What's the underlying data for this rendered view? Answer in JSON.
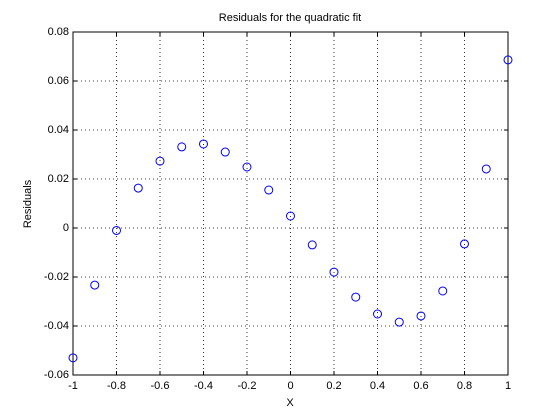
{
  "chart_data": {
    "type": "scatter",
    "title": "Residuals for the quadratic fit",
    "x_label": "X",
    "y_label": "Residuals",
    "x": [
      -1,
      -0.9,
      -0.8,
      -0.7,
      -0.6,
      -0.5,
      -0.4,
      -0.3,
      -0.2,
      -0.1,
      0,
      0.1,
      0.2,
      0.3,
      0.4,
      0.5,
      0.6,
      0.7,
      0.8,
      0.9,
      1
    ],
    "values": [
      -0.053,
      -0.0233,
      -0.001,
      0.0163,
      0.0273,
      0.0331,
      0.0343,
      0.031,
      0.0249,
      0.0155,
      0.0049,
      -0.0069,
      -0.018,
      -0.0282,
      -0.0351,
      -0.0384,
      -0.0359,
      -0.0257,
      -0.0065,
      0.0241,
      0.0686
    ],
    "color": "#0000ff",
    "xlim": [
      -1,
      1
    ],
    "xticks": [
      -1,
      -0.8,
      -0.6,
      -0.4,
      -0.2,
      0,
      0.2,
      0.4,
      0.6,
      0.8,
      1
    ],
    "ylim": [
      -0.06,
      0.08
    ],
    "yticks": [
      -0.06,
      -0.04,
      -0.02,
      0,
      0.02,
      0.04,
      0.06,
      0.08
    ],
    "grid": true
  }
}
